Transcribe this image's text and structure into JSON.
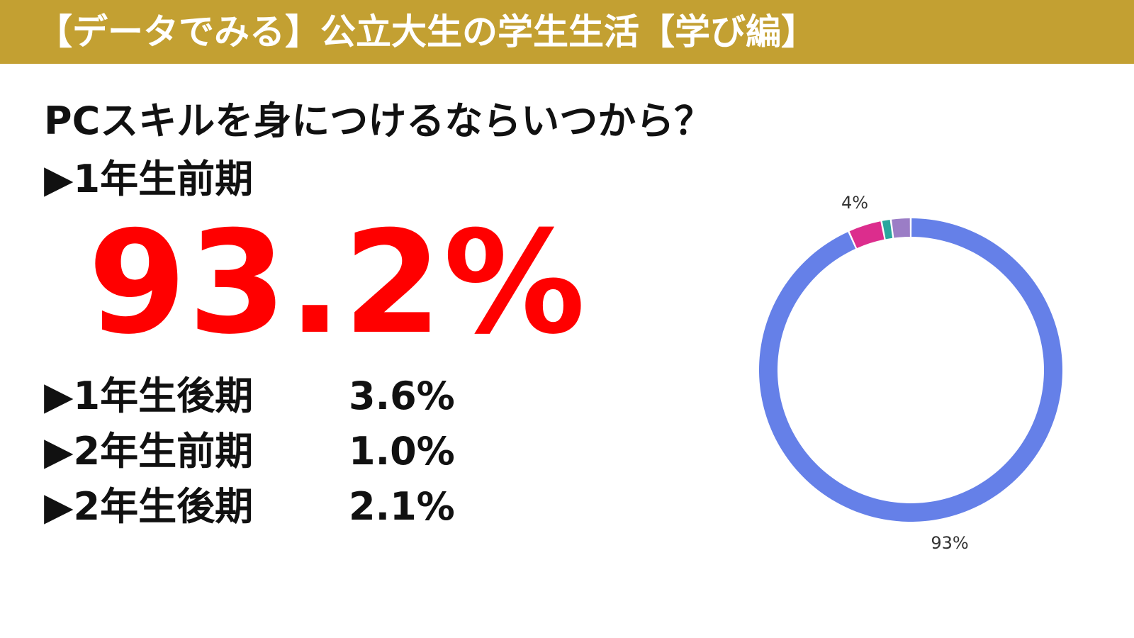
{
  "header": {
    "title": "【データでみる】公立大生の学生生活【学び編】"
  },
  "question": "PCスキルを身につけるならいつから？",
  "main": {
    "label": "▶1年生前期",
    "value": "93.2%"
  },
  "rows": [
    {
      "label": "▶1年生後期",
      "value": "3.6%"
    },
    {
      "label": "▶2年生前期",
      "value": "1.0%"
    },
    {
      "label": "▶2年生後期",
      "value": "2.1%"
    }
  ],
  "colors": {
    "header_bg": "#c3a032",
    "header_text": "#ffffff",
    "highlight": "#ff0000",
    "slice_1": "#6580e8",
    "slice_2": "#dc2d8d",
    "slice_3": "#2aa79e",
    "slice_4": "#9b7dc6"
  },
  "chart_data": {
    "type": "pie",
    "style": "donut",
    "categories": [
      "1年生前期",
      "1年生後期",
      "2年生前期",
      "2年生後期"
    ],
    "values": [
      93.2,
      3.6,
      1.0,
      2.1
    ],
    "data_labels": [
      "93%",
      "4%",
      "",
      ""
    ],
    "colors": [
      "#6580e8",
      "#dc2d8d",
      "#2aa79e",
      "#9b7dc6"
    ],
    "start": "top",
    "direction": "clockwise"
  }
}
